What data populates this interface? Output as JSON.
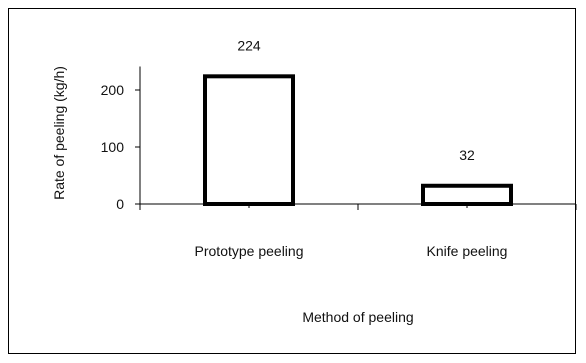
{
  "chart_data": {
    "type": "bar",
    "categories": [
      "Prototype peeling",
      "Knife peeling"
    ],
    "values": [
      224,
      32
    ],
    "data_labels": [
      "224",
      "32"
    ],
    "title": "",
    "xlabel": "Method of peeling",
    "ylabel": "Rate of peeling (kg/h)",
    "ylim": [
      0,
      250
    ],
    "yticks": [
      0,
      100,
      200
    ],
    "ytick_labels": [
      "0",
      "100",
      "200"
    ],
    "grid": false,
    "legend": "none",
    "colors": {
      "bar_fill": "#ffffff",
      "bar_stroke": "#000000",
      "axis": "#000000"
    }
  }
}
